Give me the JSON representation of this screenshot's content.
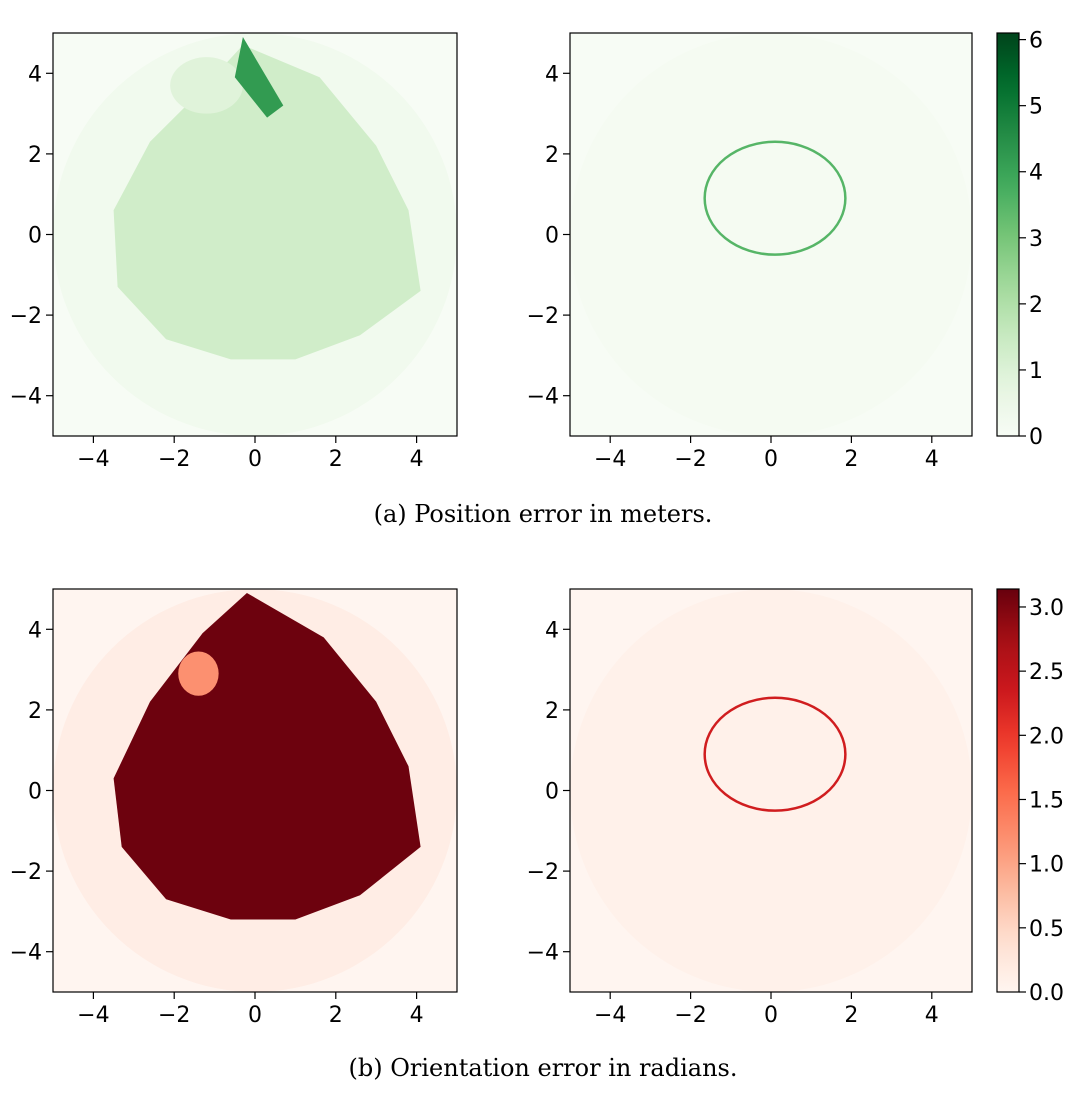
{
  "captions": {
    "a": "(a) Position error in meters.",
    "b": "(b) Orientation error in radians."
  },
  "chart_data": [
    {
      "type": "heatmap",
      "panel": "a-left",
      "colormap": "Greens",
      "xlim": [
        -5,
        5
      ],
      "ylim": [
        -5,
        5
      ],
      "xticks": [
        -4,
        -2,
        0,
        2,
        4
      ],
      "yticks": [
        -4,
        -2,
        0,
        2,
        4
      ],
      "xtick_labels": [
        "−4",
        "−2",
        "0",
        "2",
        "4"
      ],
      "ytick_labels": [
        "−4",
        "−2",
        "0",
        "2",
        "4"
      ],
      "domain_radius": 5,
      "regions": [
        {
          "shape": "disk",
          "center": [
            0,
            0
          ],
          "radius": 5,
          "value": 0.25
        },
        {
          "shape": "polygon",
          "value": 1.3,
          "points": [
            [
              -3.5,
              0.6
            ],
            [
              -2.6,
              2.3
            ],
            [
              -1.5,
              3.4
            ],
            [
              -0.3,
              4.7
            ],
            [
              1.6,
              3.9
            ],
            [
              3.0,
              2.2
            ],
            [
              3.8,
              0.6
            ],
            [
              4.1,
              -1.4
            ],
            [
              2.6,
              -2.5
            ],
            [
              1.0,
              -3.1
            ],
            [
              -0.6,
              -3.1
            ],
            [
              -2.2,
              -2.6
            ],
            [
              -3.4,
              -1.3
            ]
          ]
        },
        {
          "shape": "ellipse",
          "center": [
            -1.2,
            3.7
          ],
          "rx": 0.9,
          "ry": 0.7,
          "value": 0.9
        },
        {
          "shape": "polygon",
          "value": 4.2,
          "points": [
            [
              -0.3,
              4.9
            ],
            [
              0.7,
              3.2
            ],
            [
              0.3,
              2.9
            ],
            [
              -0.5,
              3.9
            ]
          ]
        }
      ],
      "grid": false,
      "legend": "none"
    },
    {
      "type": "heatmap",
      "panel": "a-right",
      "colormap": "Greens",
      "xlim": [
        -5,
        5
      ],
      "ylim": [
        -5,
        5
      ],
      "xticks": [
        -4,
        -2,
        0,
        2,
        4
      ],
      "yticks": [
        -4,
        -2,
        0,
        2,
        4
      ],
      "xtick_labels": [
        "−4",
        "−2",
        "0",
        "2",
        "4"
      ],
      "ytick_labels": [
        "−4",
        "−2",
        "0",
        "2",
        "4"
      ],
      "domain_radius": 5,
      "background_value": 0.1,
      "ring": {
        "center": [
          0.1,
          0.9
        ],
        "rx": 1.75,
        "ry": 1.4,
        "value": 3.5
      },
      "grid": false,
      "legend": "none"
    },
    {
      "type": "colorbar",
      "panel": "a-colorbar",
      "colormap": "Greens",
      "range": [
        0,
        6.1
      ],
      "ticks": [
        0,
        1,
        2,
        3,
        4,
        5,
        6
      ],
      "tick_labels": [
        "0",
        "1",
        "2",
        "3",
        "4",
        "5",
        "6"
      ]
    },
    {
      "type": "heatmap",
      "panel": "b-left",
      "colormap": "Reds",
      "xlim": [
        -5,
        5
      ],
      "ylim": [
        -5,
        5
      ],
      "xticks": [
        -4,
        -2,
        0,
        2,
        4
      ],
      "yticks": [
        -4,
        -2,
        0,
        2,
        4
      ],
      "xtick_labels": [
        "−4",
        "−2",
        "0",
        "2",
        "4"
      ],
      "ytick_labels": [
        "−4",
        "−2",
        "0",
        "2",
        "4"
      ],
      "domain_radius": 5,
      "regions": [
        {
          "shape": "disk",
          "center": [
            0,
            0
          ],
          "radius": 5,
          "value": 0.15
        },
        {
          "shape": "polygon",
          "value": 3.1,
          "points": [
            [
              -3.5,
              0.3
            ],
            [
              -2.6,
              2.2
            ],
            [
              -1.3,
              3.9
            ],
            [
              -0.2,
              4.9
            ],
            [
              1.7,
              3.8
            ],
            [
              3.0,
              2.2
            ],
            [
              3.8,
              0.6
            ],
            [
              4.1,
              -1.4
            ],
            [
              2.6,
              -2.6
            ],
            [
              1.0,
              -3.2
            ],
            [
              -0.6,
              -3.2
            ],
            [
              -2.2,
              -2.7
            ],
            [
              -3.3,
              -1.4
            ]
          ]
        },
        {
          "shape": "ellipse",
          "center": [
            -1.4,
            2.9
          ],
          "rx": 0.5,
          "ry": 0.55,
          "value": 1.2
        }
      ],
      "grid": false,
      "legend": "none"
    },
    {
      "type": "heatmap",
      "panel": "b-right",
      "colormap": "Reds",
      "xlim": [
        -5,
        5
      ],
      "ylim": [
        -5,
        5
      ],
      "xticks": [
        -4,
        -2,
        0,
        2,
        4
      ],
      "yticks": [
        -4,
        -2,
        0,
        2,
        4
      ],
      "xtick_labels": [
        "−4",
        "−2",
        "0",
        "2",
        "4"
      ],
      "ytick_labels": [
        "−4",
        "−2",
        "0",
        "2",
        "4"
      ],
      "domain_radius": 5,
      "background_value": 0.08,
      "ring": {
        "center": [
          0.1,
          0.9
        ],
        "rx": 1.75,
        "ry": 1.4,
        "value": 2.3
      },
      "grid": false,
      "legend": "none"
    },
    {
      "type": "colorbar",
      "panel": "b-colorbar",
      "colormap": "Reds",
      "range": [
        0,
        3.14
      ],
      "ticks": [
        0.0,
        0.5,
        1.0,
        1.5,
        2.0,
        2.5,
        3.0
      ],
      "tick_labels": [
        "0.0",
        "0.5",
        "1.0",
        "1.5",
        "2.0",
        "2.5",
        "3.0"
      ]
    }
  ]
}
